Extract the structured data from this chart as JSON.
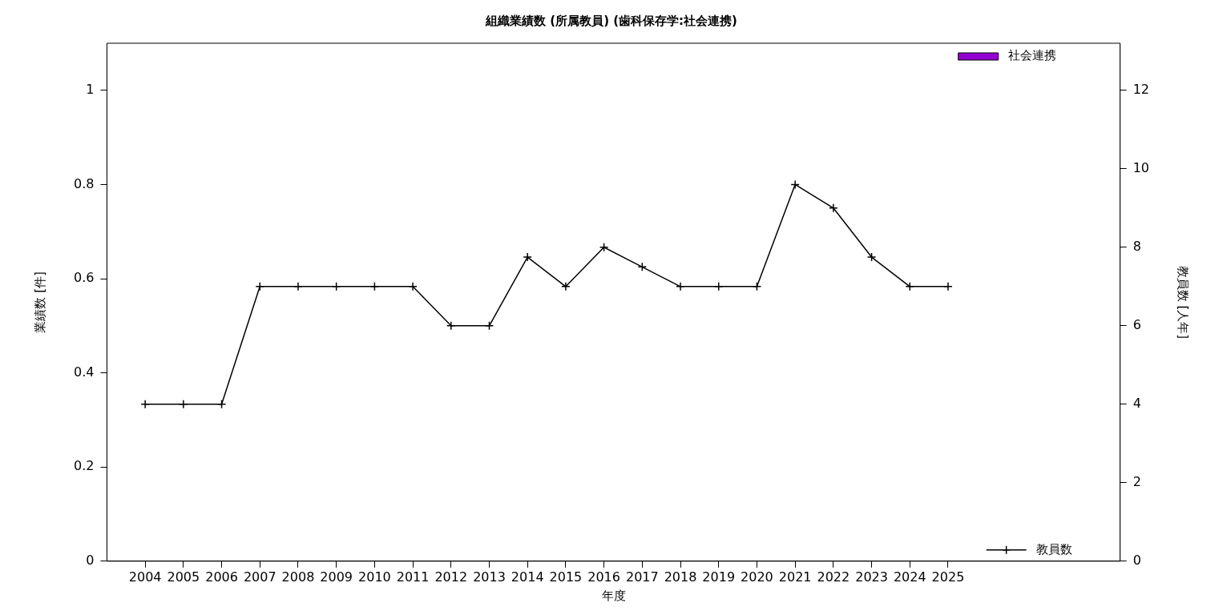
{
  "chart_data": {
    "type": "bar",
    "title": "組織業績数 (所属教員) (歯科保存学:社会連携)",
    "xlabel": "年度",
    "ylabel": "業績数 [件]",
    "y2label": "教員数 [人年]",
    "x": [
      2004,
      2005,
      2006,
      2007,
      2008,
      2009,
      2010,
      2011,
      2012,
      2013,
      2014,
      2015,
      2016,
      2017,
      2018,
      2019,
      2020,
      2021,
      2022,
      2023,
      2024,
      2025
    ],
    "xlim": [
      2003,
      2029.5
    ],
    "xticks": [
      2004,
      2005,
      2006,
      2007,
      2008,
      2009,
      2010,
      2011,
      2012,
      2013,
      2014,
      2015,
      2016,
      2017,
      2018,
      2019,
      2020,
      2021,
      2022,
      2023,
      2024,
      2025
    ],
    "ylim": [
      0,
      1.1
    ],
    "yticks": [
      0,
      0.2,
      0.4,
      0.6,
      0.8,
      1
    ],
    "y2lim": [
      0,
      13.2
    ],
    "y2ticks": [
      0,
      2,
      4,
      6,
      8,
      10,
      12
    ],
    "grid": false,
    "legend": "right",
    "series": [
      {
        "name": "社会連携",
        "color": "#9400d3",
        "values": [
          0,
          0,
          0,
          0,
          0,
          0,
          0,
          0,
          0,
          0,
          0,
          0,
          0,
          0,
          0,
          0,
          0,
          0,
          0,
          0,
          0,
          0
        ]
      },
      {
        "name": "教員数",
        "type": "line",
        "axis": "y2",
        "color": "#000000",
        "marker": "cross",
        "line_style": "solid",
        "values": [
          4,
          4,
          4,
          7,
          7,
          7,
          7,
          7,
          6,
          6,
          7.75,
          7,
          8,
          7.5,
          7,
          7,
          7,
          9.6,
          9,
          7.75,
          7,
          7
        ]
      }
    ]
  }
}
